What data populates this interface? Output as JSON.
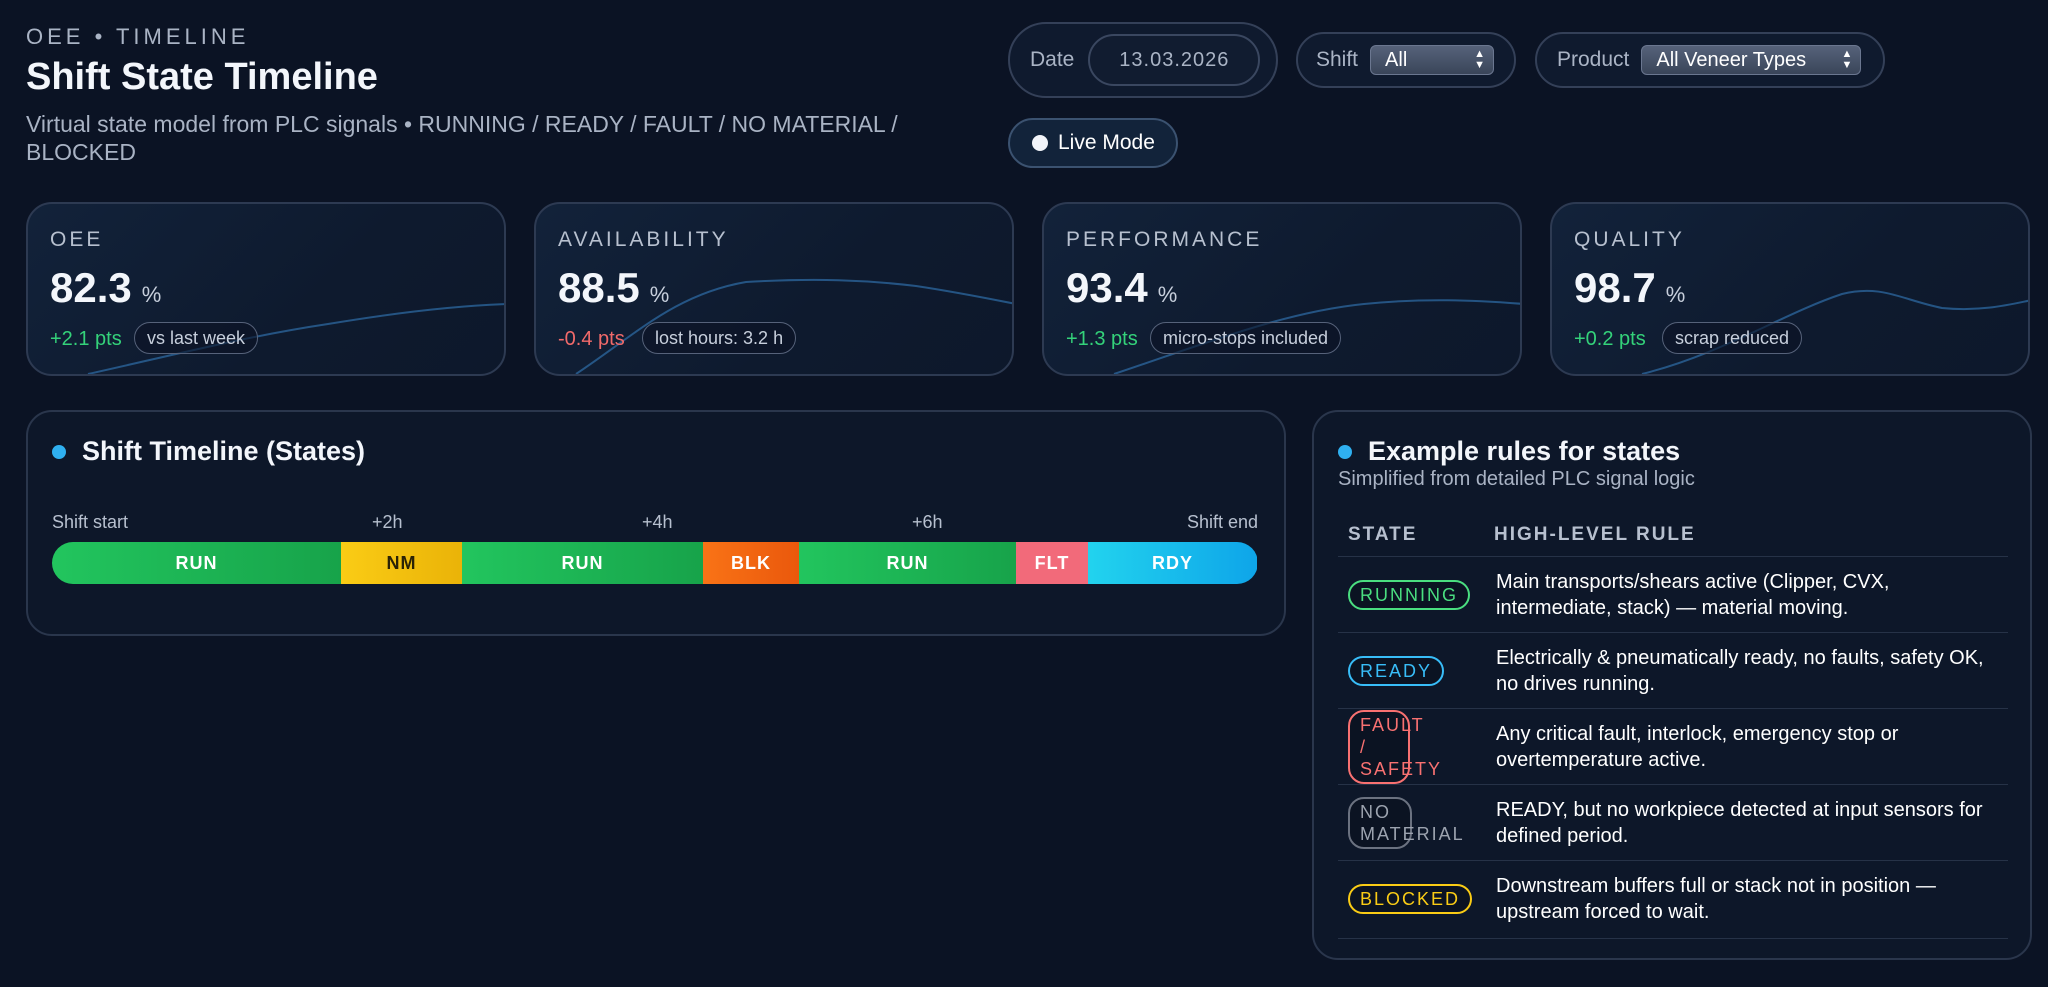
{
  "header": {
    "eyebrow": "OEE • TIMELINE",
    "title": "Shift State Timeline",
    "subtitle": "Virtual state model from PLC signals • RUNNING / READY / FAULT / NO MATERIAL / BLOCKED"
  },
  "filters": {
    "date_label": "Date",
    "date_value": "13.03.2026",
    "shift_label": "Shift",
    "shift_value": "All",
    "product_label": "Product",
    "product_value": "All Veneer Types",
    "live_mode_label": "Live Mode"
  },
  "kpis": [
    {
      "label": "OEE",
      "value": "82.3",
      "unit": "%",
      "delta": "+2.1 pts",
      "trend": "pos",
      "tag": "vs last week"
    },
    {
      "label": "AVAILABILITY",
      "value": "88.5",
      "unit": "%",
      "delta": "-0.4 pts",
      "trend": "neg",
      "tag": "lost hours: 3.2 h"
    },
    {
      "label": "PERFORMANCE",
      "value": "93.4",
      "unit": "%",
      "delta": "+1.3 pts",
      "trend": "pos",
      "tag": "micro-stops included"
    },
    {
      "label": "QUALITY",
      "value": "98.7",
      "unit": "%",
      "delta": "+0.2 pts",
      "trend": "pos",
      "tag": "scrap reduced"
    }
  ],
  "timeline": {
    "title": "Shift Timeline (States)",
    "axis": [
      "Shift start",
      "+2h",
      "+4h",
      "+6h",
      "Shift end"
    ],
    "segments": [
      {
        "label": "RUN",
        "kind": "run",
        "share": 0.24
      },
      {
        "label": "NM",
        "kind": "nm",
        "share": 0.1
      },
      {
        "label": "RUN",
        "kind": "run",
        "share": 0.2
      },
      {
        "label": "BLK",
        "kind": "blk",
        "share": 0.08
      },
      {
        "label": "RUN",
        "kind": "run",
        "share": 0.18
      },
      {
        "label": "FLT",
        "kind": "flt",
        "share": 0.06
      },
      {
        "label": "RDY",
        "kind": "rdy",
        "share": 0.14
      }
    ]
  },
  "rules": {
    "title": "Example rules for states",
    "subtitle": "Simplified from detailed PLC signal logic",
    "col_state": "STATE",
    "col_rule": "HIGH-LEVEL RULE",
    "rows": [
      {
        "state": "RUNNING",
        "kind": "run",
        "rule": "Main transports/shears active (Clipper, CVX, intermediate, stack) — material moving."
      },
      {
        "state": "READY",
        "kind": "rdy",
        "rule": "Electrically & pneumatically ready, no faults, safety OK, no drives running."
      },
      {
        "state": "FAULT / SAFETY",
        "kind": "flt",
        "rule": "Any critical fault, interlock, emergency stop or overtemperature active."
      },
      {
        "state": "NO MATERIAL",
        "kind": "nm",
        "rule": "READY, but no workpiece detected at input sensors for defined period."
      },
      {
        "state": "BLOCKED",
        "kind": "blk",
        "rule": "Downstream buffers full or stack not in position — upstream forced to wait."
      }
    ]
  }
}
